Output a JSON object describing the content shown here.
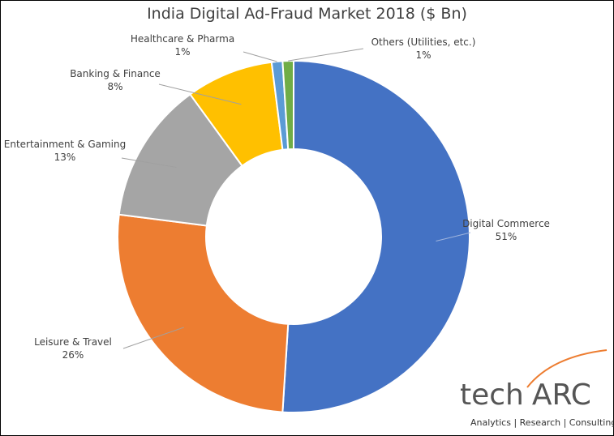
{
  "chart_data": {
    "type": "pie",
    "variant": "donut",
    "title": "India Digital Ad-Fraud Market 2018 ($ Bn)",
    "slices": [
      {
        "name": "Digital Commerce",
        "value": 51,
        "label": "51%",
        "color": "#4472C4"
      },
      {
        "name": "Leisure & Travel",
        "value": 26,
        "label": "26%",
        "color": "#ED7D31"
      },
      {
        "name": "Entertainment & Gaming",
        "value": 13,
        "label": "13%",
        "color": "#A5A5A5"
      },
      {
        "name": "Banking & Finance",
        "value": 8,
        "label": "8%",
        "color": "#FFC000"
      },
      {
        "name": "Healthcare & Pharma",
        "value": 1,
        "label": "1%",
        "color": "#5B9BD5"
      },
      {
        "name": "Others (Utilities, etc.)",
        "value": 1,
        "label": "1%",
        "color": "#70AD47"
      }
    ],
    "legend": "none"
  },
  "logo": {
    "brand_a": "tech",
    "brand_b": "ARC",
    "tagline": "Analytics | Research | Consulting"
  }
}
